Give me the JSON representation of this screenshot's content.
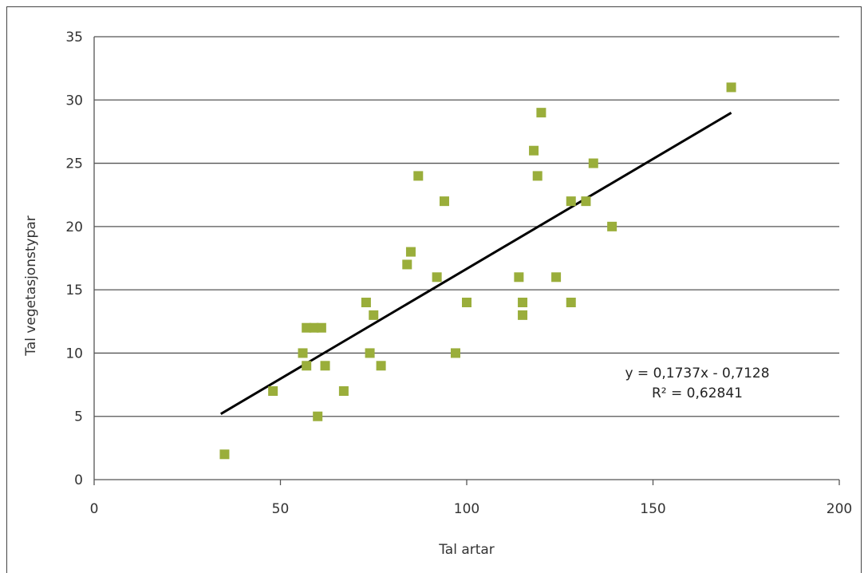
{
  "chart_data": {
    "type": "scatter",
    "title": "",
    "xlabel": "Tal artar",
    "ylabel": "Tal vegetasjonstypar",
    "xlim": [
      0,
      200
    ],
    "ylim": [
      0,
      35
    ],
    "xticks": [
      0,
      50,
      100,
      150,
      200
    ],
    "yticks": [
      0,
      5,
      10,
      15,
      20,
      25,
      30,
      35
    ],
    "grid": "horizontal",
    "marker_color": "#9aae3b",
    "line_color": "#000000",
    "points": [
      {
        "x": 35,
        "y": 2
      },
      {
        "x": 48,
        "y": 7
      },
      {
        "x": 56,
        "y": 10
      },
      {
        "x": 57,
        "y": 12
      },
      {
        "x": 57,
        "y": 9
      },
      {
        "x": 59,
        "y": 12
      },
      {
        "x": 60,
        "y": 5
      },
      {
        "x": 61,
        "y": 12
      },
      {
        "x": 62,
        "y": 9
      },
      {
        "x": 67,
        "y": 7
      },
      {
        "x": 73,
        "y": 14
      },
      {
        "x": 74,
        "y": 10
      },
      {
        "x": 75,
        "y": 13
      },
      {
        "x": 77,
        "y": 9
      },
      {
        "x": 84,
        "y": 17
      },
      {
        "x": 85,
        "y": 18
      },
      {
        "x": 87,
        "y": 24
      },
      {
        "x": 92,
        "y": 16
      },
      {
        "x": 94,
        "y": 22
      },
      {
        "x": 97,
        "y": 10
      },
      {
        "x": 100,
        "y": 14
      },
      {
        "x": 114,
        "y": 16
      },
      {
        "x": 115,
        "y": 14
      },
      {
        "x": 115,
        "y": 13
      },
      {
        "x": 118,
        "y": 26
      },
      {
        "x": 119,
        "y": 24
      },
      {
        "x": 120,
        "y": 29
      },
      {
        "x": 124,
        "y": 16
      },
      {
        "x": 128,
        "y": 22
      },
      {
        "x": 128,
        "y": 14
      },
      {
        "x": 132,
        "y": 22
      },
      {
        "x": 134,
        "y": 25
      },
      {
        "x": 139,
        "y": 20
      },
      {
        "x": 171,
        "y": 31
      }
    ],
    "trendline": {
      "slope": 0.1737,
      "intercept": -0.7128,
      "x_range": [
        34,
        171
      ],
      "equation": "y = 0,1737x - 0,7128",
      "r_squared": "R² = 0,62841"
    }
  }
}
